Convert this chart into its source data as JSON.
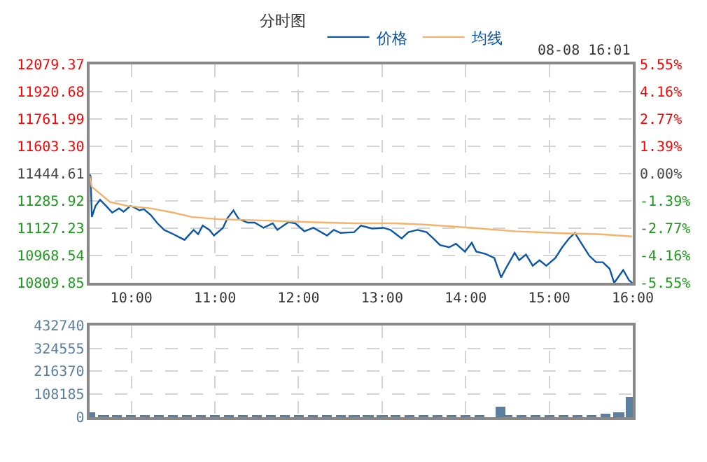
{
  "chart_data": [
    {
      "type": "line",
      "title": "分时图",
      "annotations": [
        "08-08 16:01"
      ],
      "legend": "top",
      "grid": true,
      "xlim": [
        9.5,
        16
      ],
      "xticks": [
        {
          "value": 10,
          "label": "10:00"
        },
        {
          "value": 11,
          "label": "11:00"
        },
        {
          "value": 12,
          "label": "12:00"
        },
        {
          "value": 13,
          "label": "13:00"
        },
        {
          "value": 14,
          "label": "14:00"
        },
        {
          "value": 15,
          "label": "15:00"
        },
        {
          "value": 16,
          "label": "16:00"
        }
      ],
      "ylim": [
        10809.85,
        12079.37
      ],
      "yticks": [
        12079.37,
        11920.68,
        11761.99,
        {
          "value": 11603.3,
          "label": "11603.30"
        },
        11444.61,
        11285.92,
        11127.23,
        10968.54,
        10809.85
      ],
      "y2lim": [
        -5.55,
        5.55
      ],
      "y2ticks": [
        {
          "value": 5.55,
          "label": "5.55%"
        },
        {
          "value": 4.16,
          "label": "4.16%"
        },
        {
          "value": 2.77,
          "label": "2.77%"
        },
        {
          "value": 1.39,
          "label": "1.39%"
        },
        {
          "value": 0,
          "label": "0.00%"
        },
        {
          "value": -1.39,
          "label": "-1.39%"
        },
        {
          "value": -2.77,
          "label": "-2.77%"
        },
        {
          "value": -4.16,
          "label": "-4.16%"
        },
        {
          "value": -5.55,
          "label": "-5.55%"
        }
      ],
      "series": [
        {
          "name": "价格",
          "color": "#0a56a8",
          "x": [
            9.5,
            9.511,
            9.527,
            9.57,
            9.625,
            9.689,
            9.771,
            9.852,
            9.906,
            9.987,
            10.025,
            10.095,
            10.149,
            10.231,
            10.312,
            10.393,
            10.501,
            10.636,
            10.745,
            10.799,
            10.853,
            10.934,
            10.988,
            11.096,
            11.15,
            11.221,
            11.286,
            11.394,
            11.475,
            11.583,
            11.692,
            11.746,
            11.881,
            11.962,
            12.07,
            12.179,
            12.341,
            12.422,
            12.503,
            12.666,
            12.747,
            12.882,
            13.017,
            13.099,
            13.153,
            13.234,
            13.315,
            13.423,
            13.532,
            13.613,
            13.694,
            13.802,
            13.883,
            13.991,
            14.073,
            14.127,
            14.235,
            14.343,
            14.424,
            14.478,
            14.586,
            14.64,
            14.722,
            14.803,
            14.884,
            14.965,
            15.074,
            15.155,
            15.236,
            15.307,
            15.398,
            15.479,
            15.561,
            15.642,
            15.723,
            15.777,
            15.885,
            15.956,
            15.994
          ],
          "values": [
            11440,
            11432,
            11194,
            11257,
            11294,
            11262,
            11219,
            11244,
            11224,
            11257,
            11252,
            11232,
            11239,
            11206,
            11157,
            11119,
            11094,
            11061,
            11119,
            11094,
            11144,
            11119,
            11086,
            11131,
            11187,
            11232,
            11181,
            11161,
            11161,
            11131,
            11157,
            11119,
            11164,
            11157,
            11111,
            11131,
            11086,
            11119,
            11101,
            11106,
            11144,
            11127,
            11131,
            11119,
            11099,
            11069,
            11106,
            11119,
            11106,
            11069,
            11031,
            11018,
            11039,
            10993,
            11044,
            10993,
            10980,
            10956,
            10843,
            10893,
            10986,
            10943,
            10976,
            10911,
            10943,
            10911,
            10956,
            11018,
            11069,
            11101,
            11031,
            10969,
            10931,
            10931,
            10893,
            10811,
            10886,
            10826,
            10811
          ]
        },
        {
          "name": "均线",
          "color": "#f4b26a",
          "x": [
            9.5,
            9.527,
            9.744,
            9.96,
            10.23,
            10.5,
            10.72,
            11.04,
            11.58,
            12.12,
            12.67,
            13.15,
            13.53,
            14.07,
            14.59,
            15.16,
            15.59,
            15.99
          ],
          "values": [
            11432,
            11369,
            11281,
            11257,
            11244,
            11219,
            11194,
            11181,
            11174,
            11164,
            11157,
            11157,
            11149,
            11131,
            11111,
            11099,
            11094,
            11081
          ]
        }
      ]
    },
    {
      "type": "bar",
      "grid": true,
      "tick_labels": "y",
      "color": "#5b7fa1",
      "xlim": [
        9.5,
        16
      ],
      "ylim": [
        0,
        432740
      ],
      "yticks": [
        0,
        108185,
        216370,
        324555,
        432740
      ],
      "x": [
        9.5,
        9.667,
        9.833,
        10,
        10.167,
        10.333,
        10.5,
        10.667,
        10.833,
        11,
        11.167,
        11.333,
        11.5,
        11.667,
        11.833,
        12,
        12.167,
        12.333,
        12.5,
        12.667,
        12.833,
        13,
        13.167,
        13.333,
        13.5,
        13.667,
        13.833,
        14,
        14.167,
        14.417,
        14.5,
        14.667,
        14.833,
        15,
        15.167,
        15.333,
        15.5,
        15.667,
        15.833,
        15.983
      ],
      "values": [
        22000,
        10000,
        9000,
        9000,
        8000,
        8000,
        8000,
        7000,
        8000,
        9000,
        10000,
        9000,
        8000,
        8000,
        7000,
        8000,
        8000,
        7000,
        7000,
        7000,
        7000,
        7000,
        8000,
        7000,
        7000,
        6000,
        6000,
        7000,
        7000,
        52000,
        10000,
        9000,
        8000,
        9000,
        10000,
        12000,
        12000,
        14000,
        25000,
        98000
      ]
    }
  ]
}
